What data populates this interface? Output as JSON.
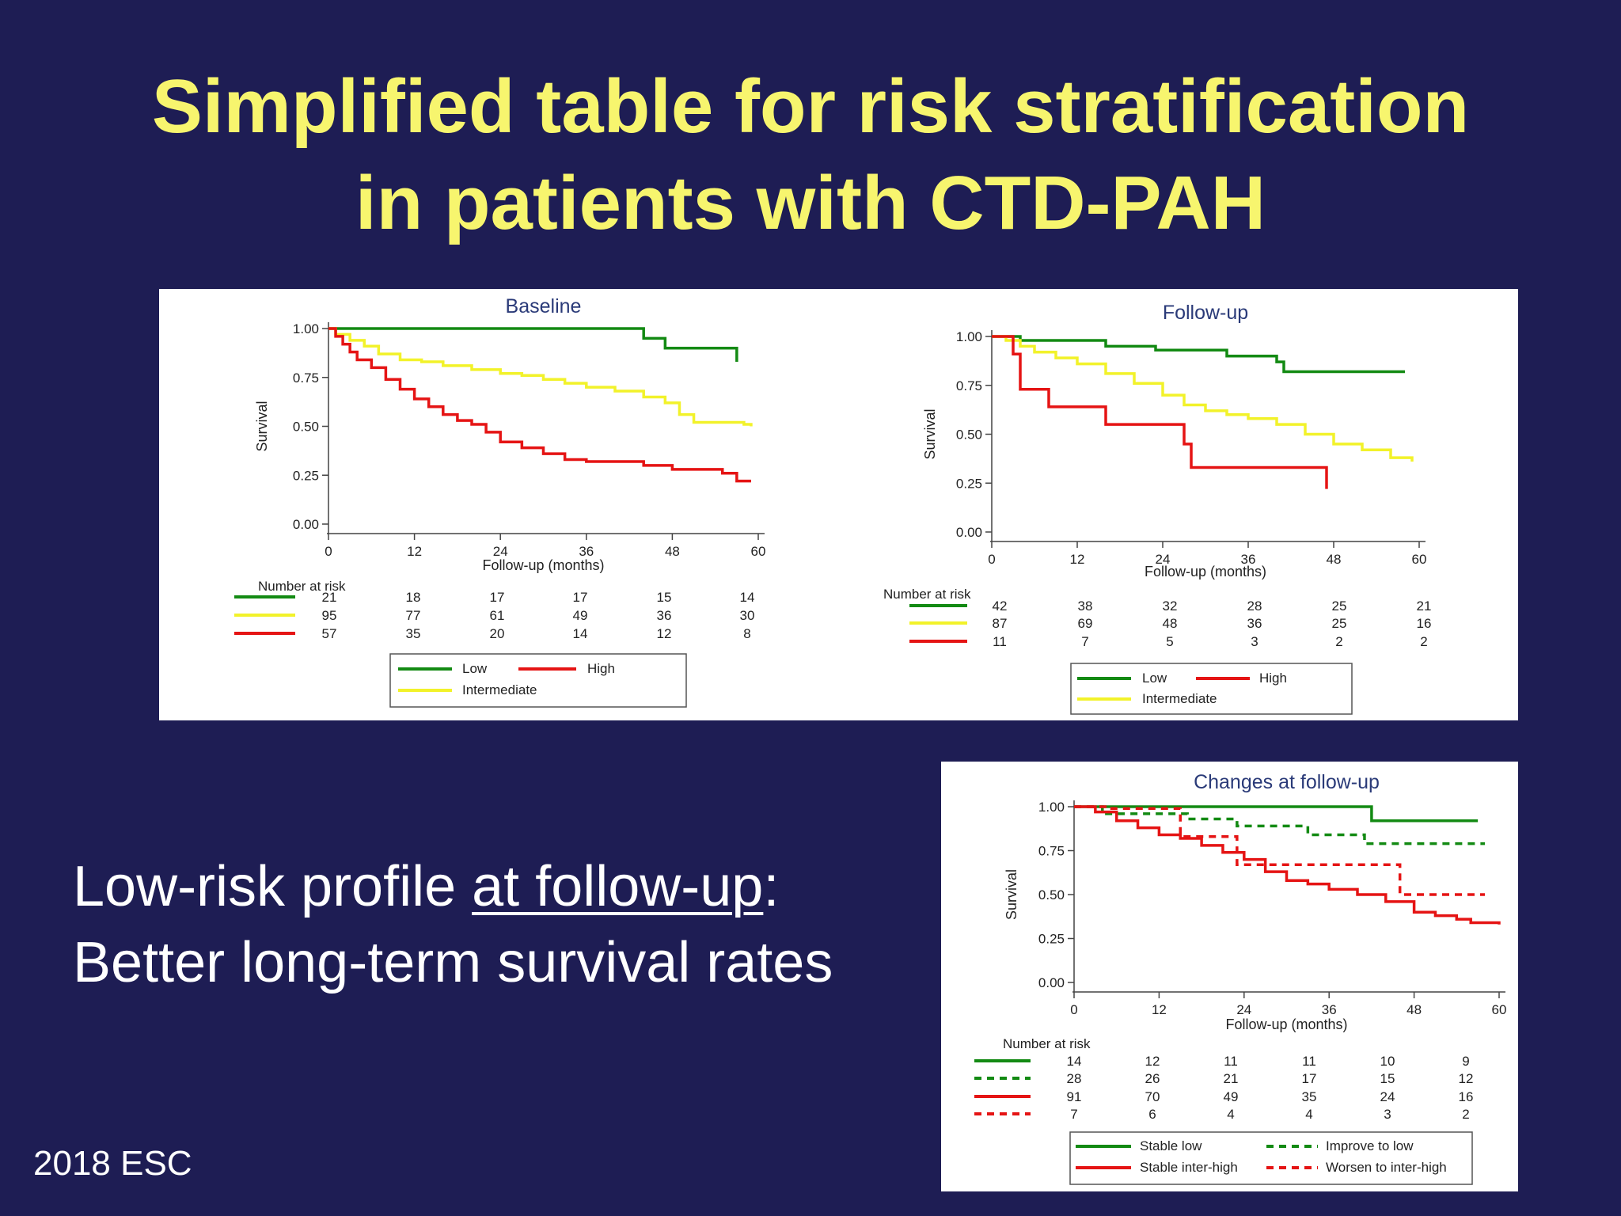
{
  "slide": {
    "title_line1": "Simplified table for risk stratification",
    "title_line2": "in patients with CTD-PAH",
    "message_line1_pre": "Low-risk profile ",
    "message_line1_underlined": "at follow-up",
    "message_line1_post": ":",
    "message_line2": "Better long-term survival rates",
    "footer": "2018 ESC"
  },
  "chart_data": [
    {
      "type": "line",
      "title": "Baseline",
      "xlabel": "Follow-up (months)",
      "ylabel": "Survival",
      "xlim": [
        0,
        60
      ],
      "ylim": [
        0,
        1
      ],
      "xticks": [
        "0",
        "12",
        "24",
        "36",
        "48",
        "60"
      ],
      "yticks": [
        "0.00",
        "0.25",
        "0.50",
        "0.75",
        "1.00"
      ],
      "step": true,
      "risk_label": "Number at risk",
      "legend_order": [
        0,
        2,
        1
      ],
      "series": [
        {
          "name": "Low",
          "color": "#138a13",
          "dash": false,
          "x": [
            0,
            44,
            44,
            47,
            47,
            57,
            57
          ],
          "y": [
            1,
            1,
            0.95,
            0.95,
            0.9,
            0.9,
            0.83
          ],
          "at_risk": [
            "21",
            "18",
            "17",
            "17",
            "15",
            "14"
          ]
        },
        {
          "name": "Intermediate",
          "color": "#f2f22a",
          "dash": false,
          "x": [
            0,
            1,
            3,
            5,
            7,
            10,
            13,
            16,
            20,
            24,
            27,
            30,
            33,
            36,
            40,
            44,
            47,
            49,
            51,
            55,
            58,
            59
          ],
          "y": [
            1,
            0.97,
            0.94,
            0.91,
            0.87,
            0.84,
            0.83,
            0.81,
            0.79,
            0.77,
            0.76,
            0.74,
            0.72,
            0.7,
            0.68,
            0.65,
            0.62,
            0.56,
            0.52,
            0.52,
            0.51,
            0.5
          ],
          "at_risk": [
            "95",
            "77",
            "61",
            "49",
            "36",
            "30"
          ]
        },
        {
          "name": "High",
          "color": "#e51414",
          "dash": false,
          "x": [
            0,
            1,
            2,
            3,
            4,
            6,
            8,
            10,
            12,
            14,
            16,
            18,
            20,
            22,
            24,
            27,
            30,
            33,
            36,
            40,
            44,
            48,
            52,
            55,
            57,
            59
          ],
          "y": [
            1,
            0.96,
            0.92,
            0.88,
            0.84,
            0.8,
            0.74,
            0.69,
            0.64,
            0.6,
            0.56,
            0.53,
            0.51,
            0.47,
            0.42,
            0.39,
            0.36,
            0.33,
            0.32,
            0.32,
            0.3,
            0.28,
            0.28,
            0.26,
            0.22,
            0.22
          ],
          "at_risk": [
            "57",
            "35",
            "20",
            "14",
            "12",
            "8"
          ]
        }
      ]
    },
    {
      "type": "line",
      "title": "Follow-up",
      "xlabel": "Follow-up (months)",
      "ylabel": "Survival",
      "xlim": [
        0,
        60
      ],
      "ylim": [
        0,
        1
      ],
      "xticks": [
        "0",
        "12",
        "24",
        "36",
        "48",
        "60"
      ],
      "yticks": [
        "0.00",
        "0.25",
        "0.50",
        "0.75",
        "1.00"
      ],
      "step": true,
      "risk_label": "Number at risk",
      "legend_order": [
        0,
        2,
        1
      ],
      "series": [
        {
          "name": "Low",
          "color": "#138a13",
          "dash": false,
          "x": [
            0,
            2,
            4,
            16,
            16,
            23,
            23,
            33,
            33,
            40,
            40,
            41,
            41,
            58
          ],
          "y": [
            1,
            1,
            0.98,
            0.98,
            0.95,
            0.95,
            0.93,
            0.93,
            0.9,
            0.9,
            0.87,
            0.87,
            0.82,
            0.82
          ],
          "at_risk": [
            "42",
            "38",
            "32",
            "28",
            "25",
            "21"
          ]
        },
        {
          "name": "Intermediate",
          "color": "#f2f22a",
          "dash": false,
          "x": [
            0,
            2,
            4,
            6,
            9,
            12,
            16,
            20,
            24,
            27,
            30,
            33,
            36,
            40,
            44,
            48,
            52,
            56,
            59
          ],
          "y": [
            1,
            0.98,
            0.95,
            0.92,
            0.89,
            0.86,
            0.81,
            0.76,
            0.7,
            0.65,
            0.62,
            0.6,
            0.58,
            0.55,
            0.5,
            0.45,
            0.42,
            0.38,
            0.36
          ],
          "at_risk": [
            "87",
            "69",
            "48",
            "36",
            "25",
            "16"
          ]
        },
        {
          "name": "High",
          "color": "#e51414",
          "dash": false,
          "x": [
            0,
            3,
            3,
            4,
            4,
            8,
            8,
            16,
            16,
            27,
            27,
            28,
            28,
            47,
            47
          ],
          "y": [
            1,
            1,
            0.91,
            0.91,
            0.73,
            0.73,
            0.64,
            0.64,
            0.55,
            0.55,
            0.45,
            0.45,
            0.33,
            0.33,
            0.22
          ],
          "at_risk": [
            "11",
            "7",
            "5",
            "3",
            "2",
            "2"
          ]
        }
      ]
    },
    {
      "type": "line",
      "title": "Changes at follow-up",
      "xlabel": "Follow-up (months)",
      "ylabel": "Survival",
      "xlim": [
        0,
        60
      ],
      "ylim": [
        0,
        1
      ],
      "xticks": [
        "0",
        "12",
        "24",
        "36",
        "48",
        "60"
      ],
      "yticks": [
        "0.00",
        "0.25",
        "0.50",
        "0.75",
        "1.00"
      ],
      "step": true,
      "risk_label": "Number at risk",
      "legend_order": [
        0,
        1,
        2,
        3
      ],
      "series": [
        {
          "name": "Stable low",
          "color": "#138a13",
          "dash": false,
          "x": [
            0,
            42,
            42,
            57
          ],
          "y": [
            1,
            1,
            0.92,
            0.92
          ],
          "at_risk": [
            "14",
            "12",
            "11",
            "11",
            "10",
            "9"
          ]
        },
        {
          "name": "Improve to low",
          "color": "#138a13",
          "dash": true,
          "x": [
            0,
            4,
            4,
            16,
            16,
            23,
            23,
            33,
            33,
            41,
            41,
            58
          ],
          "y": [
            1,
            1,
            0.96,
            0.96,
            0.93,
            0.93,
            0.89,
            0.89,
            0.84,
            0.84,
            0.79,
            0.79
          ],
          "at_risk": [
            "28",
            "26",
            "21",
            "17",
            "15",
            "12"
          ]
        },
        {
          "name": "Stable inter-high",
          "color": "#e51414",
          "dash": false,
          "x": [
            0,
            3,
            6,
            9,
            12,
            15,
            18,
            21,
            24,
            27,
            30,
            33,
            36,
            40,
            44,
            48,
            51,
            54,
            56,
            58,
            60
          ],
          "y": [
            1,
            0.97,
            0.92,
            0.88,
            0.84,
            0.82,
            0.78,
            0.74,
            0.7,
            0.63,
            0.58,
            0.56,
            0.53,
            0.5,
            0.46,
            0.4,
            0.38,
            0.36,
            0.34,
            0.34,
            0.33
          ],
          "at_risk": [
            "91",
            "70",
            "49",
            "35",
            "24",
            "16"
          ]
        },
        {
          "name": "Worsen to inter-high",
          "color": "#e51414",
          "dash": true,
          "x": [
            0,
            5,
            5,
            15,
            15,
            23,
            23,
            46,
            46,
            58
          ],
          "y": [
            1,
            1,
            0.99,
            0.99,
            0.83,
            0.83,
            0.67,
            0.67,
            0.5,
            0.5
          ],
          "at_risk": [
            "7",
            "6",
            "4",
            "4",
            "3",
            "2"
          ]
        }
      ]
    }
  ]
}
